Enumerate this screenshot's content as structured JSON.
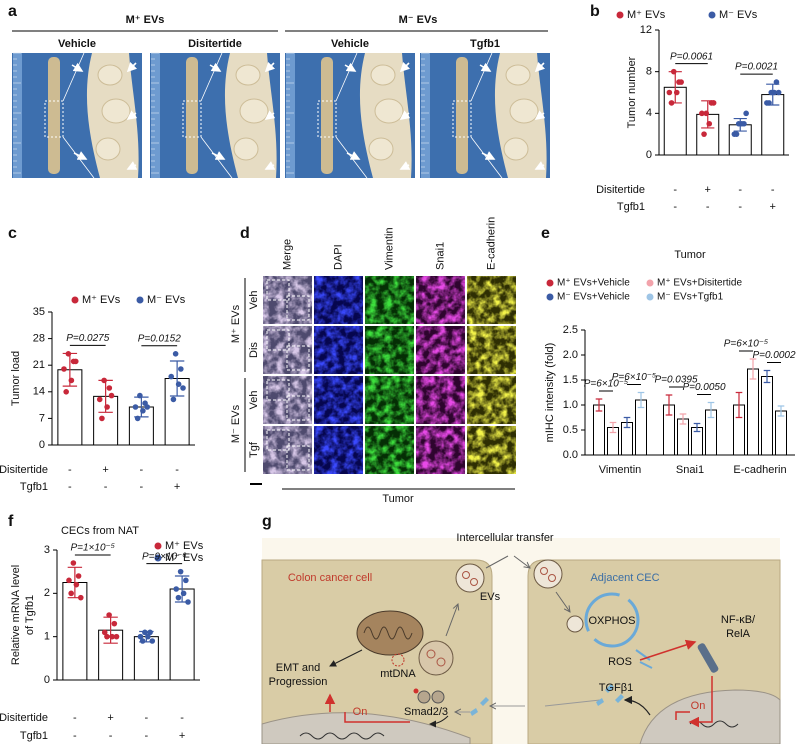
{
  "panel_labels": [
    "a",
    "b",
    "c",
    "d",
    "e",
    "f",
    "g"
  ],
  "panel_a": {
    "groups": [
      "M⁺ EVs",
      "M⁻ EVs"
    ],
    "conditions": [
      "Vehicle",
      "Disitertide",
      "Vehicle",
      "Tgfb1"
    ]
  },
  "panel_d": {
    "columns": [
      "Merge",
      "DAPI",
      "Vimentin",
      "Snai1",
      "E-cadherin"
    ],
    "rows": [
      "Veh",
      "Dis",
      "Veh",
      "Tgf"
    ],
    "groups": [
      "M⁺ EVs",
      "M⁻ EVs"
    ],
    "footer": "Tumor"
  },
  "panel_g": {
    "transfer": "Intercellular transfer",
    "evs": "EVs",
    "left_cell": "Colon cancer cell",
    "right_cell": "Adjacent CEC",
    "oxphos": "OXPHOS",
    "nfkb": [
      "NF-κB/",
      "RelA"
    ],
    "ros": "ROS",
    "tgfb": "TGFβ1",
    "emt": [
      "EMT and",
      "Progression"
    ],
    "mtdna": "mtDNA",
    "smad": "Smad2/3",
    "on_left": "On",
    "on_right": "On"
  },
  "chart_data": [
    {
      "type": "bar",
      "ylabel": "Tumor number",
      "ylim": [
        0,
        12
      ],
      "yticks": [
        0,
        4,
        8,
        12
      ],
      "series": [
        {
          "name": "M⁺ EVs",
          "color": "#c8283a",
          "values": [
            6.5,
            3.9,
            null,
            null
          ],
          "errors": [
            1.5,
            1.3,
            null,
            null
          ],
          "points": [
            [
              8,
              7,
              6,
              6,
              5,
              7
            ],
            [
              4,
              5,
              4,
              3,
              2,
              5
            ],
            null,
            null
          ]
        },
        {
          "name": "M⁻ EVs",
          "color": "#3b5ba5",
          "values": [
            null,
            null,
            2.9,
            5.8
          ],
          "errors": [
            null,
            null,
            0.6,
            1.0
          ],
          "points": [
            null,
            null,
            [
              3,
              3,
              2,
              3,
              2,
              4
            ],
            [
              6,
              7,
              5,
              6,
              5,
              6
            ]
          ]
        }
      ],
      "annotations": [
        "P=0.0061",
        "P=0.0021"
      ],
      "conditions": [
        {
          "name": "Disitertide",
          "values": [
            "-",
            "+",
            "-",
            "-"
          ]
        },
        {
          "name": "Tgfb1",
          "values": [
            "-",
            "-",
            "-",
            "+"
          ]
        }
      ]
    },
    {
      "type": "bar",
      "ylabel": "Tumor load",
      "ylim": [
        0,
        35
      ],
      "yticks": [
        0,
        7,
        14,
        21,
        28,
        35
      ],
      "series": [
        {
          "name": "M⁺ EVs",
          "color": "#c8283a",
          "values": [
            19.8,
            12.8,
            null,
            null
          ],
          "errors": [
            4.3,
            4.2,
            null,
            null
          ],
          "points": [
            [
              24,
              22,
              20,
              17,
              14,
              22
            ],
            [
              17,
              15,
              12,
              10,
              7,
              13
            ],
            null,
            null
          ]
        },
        {
          "name": "M⁻ EVs",
          "color": "#3b5ba5",
          "values": [
            null,
            null,
            10,
            17.5
          ],
          "errors": [
            null,
            null,
            2.6,
            4.6
          ],
          "points": [
            null,
            null,
            [
              13,
              11,
              10,
              9,
              7,
              10
            ],
            [
              24,
              20,
              18,
              16,
              12,
              15
            ]
          ]
        }
      ],
      "annotations": [
        "P=0.0275",
        "P=0.0152"
      ],
      "conditions": [
        {
          "name": "Disitertide",
          "values": [
            "-",
            "+",
            "-",
            "-"
          ]
        },
        {
          "name": "Tgfb1",
          "values": [
            "-",
            "-",
            "-",
            "+"
          ]
        }
      ]
    },
    {
      "type": "bar",
      "title": "Tumor",
      "ylabel": "mIHC intensity (fold)",
      "ylim": [
        0,
        2.5
      ],
      "yticks": [
        {
          "value": 0,
          "label": "0.0"
        },
        0.5,
        {
          "value": 1,
          "label": "1.0"
        },
        1.5,
        {
          "value": 2,
          "label": "2.0"
        },
        2.5
      ],
      "categories": [
        "Vimentin",
        "Snai1",
        "E-cadherin"
      ],
      "series": [
        {
          "name": "M⁺ EVs+Vehicle",
          "color": "#c8283a",
          "values": [
            1.0,
            1.0,
            1.0
          ],
          "errors": [
            0.12,
            0.2,
            0.25
          ]
        },
        {
          "name": "M⁺ EVs+Disitertide",
          "color": "#f2a3ab",
          "values": [
            0.55,
            0.72,
            1.72
          ],
          "errors": [
            0.1,
            0.1,
            0.2
          ]
        },
        {
          "name": "M⁻ EVs+Vehicle",
          "color": "#3b5ba5",
          "values": [
            0.65,
            0.55,
            1.57
          ],
          "errors": [
            0.1,
            0.08,
            0.12
          ]
        },
        {
          "name": "M⁻ EVs+Tgfb1",
          "color": "#9ec5e6",
          "values": [
            1.1,
            0.9,
            0.88
          ],
          "errors": [
            0.15,
            0.15,
            0.1
          ]
        }
      ],
      "annotations": [
        "P=6×10⁻⁵",
        "P=6×10⁻⁵",
        "P=0.0395",
        "P=0.0050",
        "P=6×10⁻⁵",
        "P=0.0002"
      ]
    },
    {
      "type": "bar",
      "title": "CECs from NAT",
      "ylabel": [
        "Relative mRNA level",
        "of Tgfb1"
      ],
      "ylim": [
        0,
        3
      ],
      "yticks": [
        0,
        1,
        2,
        3
      ],
      "series": [
        {
          "name": "M⁺ EVs",
          "color": "#c8283a",
          "values": [
            2.25,
            1.15,
            null,
            null
          ],
          "errors": [
            0.35,
            0.3,
            null,
            null
          ],
          "points": [
            [
              2.7,
              2.4,
              2.3,
              2.2,
              2.0,
              1.9
            ],
            [
              1.5,
              1.3,
              1.1,
              1.0,
              1.0,
              1.0
            ],
            null,
            null
          ]
        },
        {
          "name": "M⁻ EVs",
          "color": "#3b5ba5",
          "values": [
            null,
            null,
            1.0,
            2.1
          ],
          "errors": [
            null,
            null,
            0.12,
            0.3
          ],
          "points": [
            null,
            null,
            [
              1.1,
              1.1,
              1.0,
              1.0,
              0.9,
              0.9
            ],
            [
              2.5,
              2.3,
              2.1,
              2.0,
              1.9,
              1.8
            ]
          ]
        }
      ],
      "annotations": [
        "P=1×10⁻⁵",
        "P=9×10⁻⁶"
      ],
      "conditions": [
        {
          "name": "Disitertide",
          "values": [
            "-",
            "+",
            "-",
            "-"
          ]
        },
        {
          "name": "Tgfb1",
          "values": [
            "-",
            "-",
            "-",
            "+"
          ]
        }
      ]
    }
  ]
}
